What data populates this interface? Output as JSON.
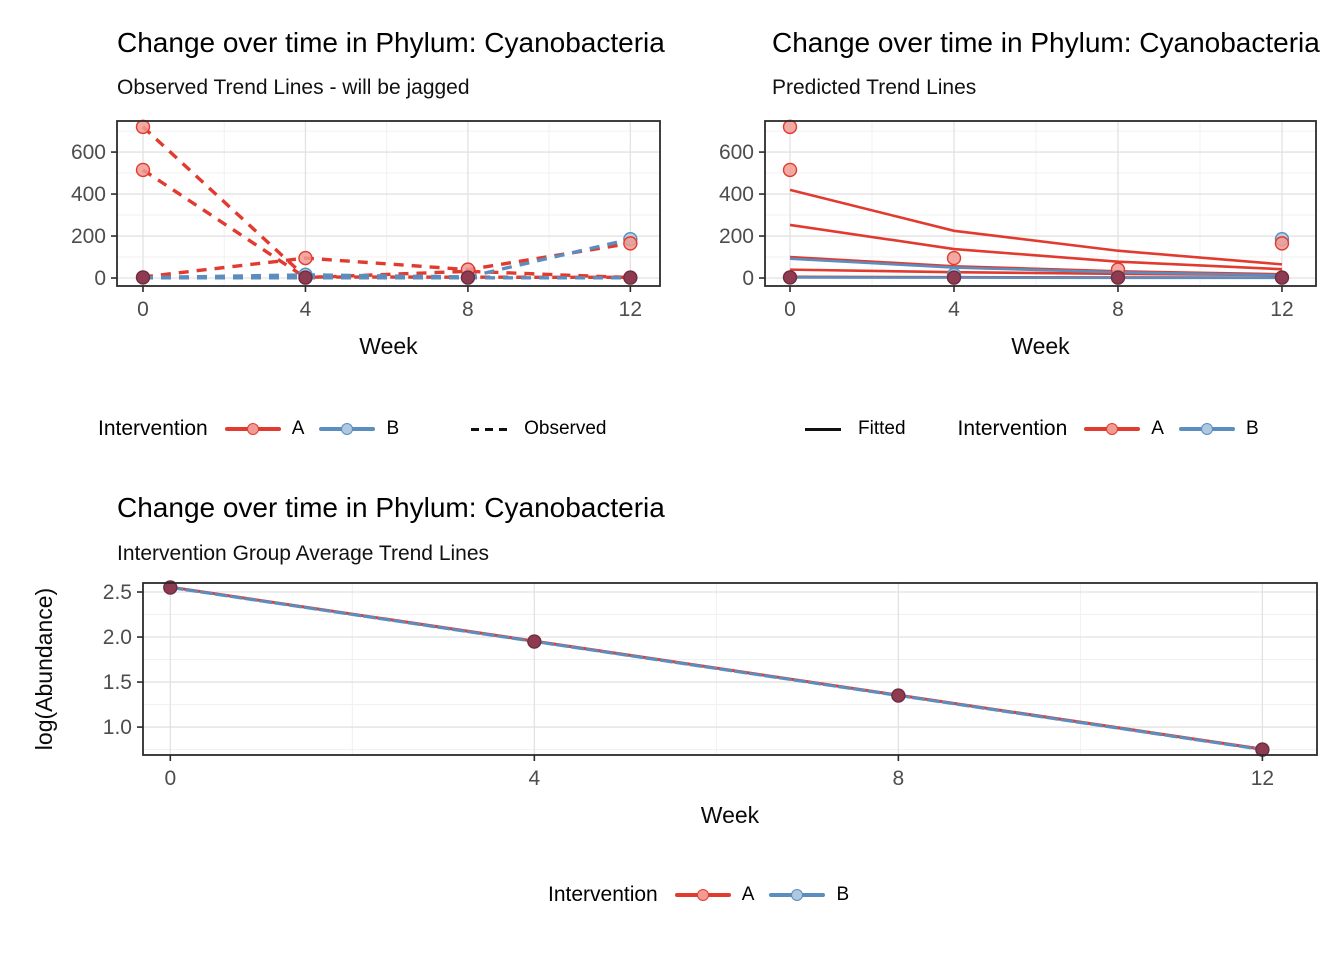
{
  "colors": {
    "red": "#E13B30",
    "red_fill": "#F09B93",
    "blue": "#5B8DBE",
    "blue_fill": "#AEC8E0",
    "overlap_point": "#8E3B51",
    "overlap_stroke": "#6E2C40",
    "grid_major": "#E2E2E2",
    "grid_minor": "#F0F0F0",
    "panel_border": "#2B2B2B",
    "tick_text": "#4D4D4D",
    "axis_title": "#0A0A0A"
  },
  "legends": {
    "observed": {
      "title": "Intervention",
      "a": "A",
      "b": "B",
      "linetype_label": "Observed"
    },
    "fitted": {
      "linetype_label": "Fitted",
      "title": "Intervention",
      "a": "A",
      "b": "B"
    },
    "average": {
      "title": "Intervention",
      "a": "A",
      "b": "B"
    }
  },
  "chart_data": [
    {
      "type": "line",
      "title": "Change over time in Phylum: Cyanobacteria",
      "subtitle": "Observed Trend Lines - will be jagged",
      "xlabel": "Week",
      "ylabel": "",
      "x": [
        0,
        4,
        8,
        12
      ],
      "xticks": [
        {
          "v": 0,
          "label": "0"
        },
        {
          "v": 4,
          "label": "4"
        },
        {
          "v": 8,
          "label": "8"
        },
        {
          "v": 12,
          "label": "12"
        }
      ],
      "yticks": [
        {
          "v": 0,
          "label": "0"
        },
        {
          "v": 200,
          "label": "200"
        },
        {
          "v": 400,
          "label": "400"
        },
        {
          "v": 600,
          "label": "600"
        }
      ],
      "xminor": [
        2,
        6,
        10
      ],
      "yminor": [
        100,
        300,
        500,
        700
      ],
      "xlim": [
        -0.64,
        12.73
      ],
      "ylim": [
        -38,
        748
      ],
      "grid": true,
      "legend_position": "bottom",
      "panel": {
        "l": 117,
        "t": 121,
        "r": 660,
        "b": 286
      },
      "line_width": 3.4,
      "series": [
        {
          "name": "A subject 1",
          "group": "A",
          "style": "dashed",
          "values": [
            720,
            5,
            4,
            3
          ]
        },
        {
          "name": "A subject 2",
          "group": "A",
          "style": "dashed",
          "values": [
            515,
            2,
            32,
            2
          ]
        },
        {
          "name": "A subject 3",
          "group": "A",
          "style": "dashed",
          "values": [
            5,
            95,
            40,
            165
          ]
        },
        {
          "name": "B subject 1",
          "group": "B",
          "style": "dashed",
          "values": [
            2,
            15,
            5,
            185
          ]
        },
        {
          "name": "B subject 2",
          "group": "B",
          "style": "dashed",
          "values": [
            1,
            1,
            1,
            1
          ]
        }
      ],
      "points": [
        {
          "x": 0,
          "y": 720,
          "g": "A"
        },
        {
          "x": 0,
          "y": 515,
          "g": "A"
        },
        {
          "x": 0,
          "y": 3,
          "g": "AB"
        },
        {
          "x": 4,
          "y": 95,
          "g": "A"
        },
        {
          "x": 4,
          "y": 15,
          "g": "B"
        },
        {
          "x": 4,
          "y": 2,
          "g": "AB"
        },
        {
          "x": 8,
          "y": 40,
          "g": "A"
        },
        {
          "x": 8,
          "y": 2,
          "g": "AB"
        },
        {
          "x": 12,
          "y": 185,
          "g": "B"
        },
        {
          "x": 12,
          "y": 165,
          "g": "A"
        },
        {
          "x": 12,
          "y": 2,
          "g": "AB"
        }
      ]
    },
    {
      "type": "line",
      "title": "Change over time in Phylum: Cyanobacteria",
      "subtitle": "Predicted Trend Lines",
      "xlabel": "Week",
      "ylabel": "",
      "x": [
        0,
        4,
        8,
        12
      ],
      "xticks": [
        {
          "v": 0,
          "label": "0"
        },
        {
          "v": 4,
          "label": "4"
        },
        {
          "v": 8,
          "label": "8"
        },
        {
          "v": 12,
          "label": "12"
        }
      ],
      "yticks": [
        {
          "v": 0,
          "label": "0"
        },
        {
          "v": 200,
          "label": "200"
        },
        {
          "v": 400,
          "label": "400"
        },
        {
          "v": 600,
          "label": "600"
        }
      ],
      "xminor": [
        2,
        6,
        10
      ],
      "yminor": [
        100,
        300,
        500,
        700
      ],
      "xlim": [
        -0.61,
        12.83
      ],
      "ylim": [
        -38,
        748
      ],
      "grid": true,
      "legend_position": "bottom",
      "panel": {
        "l": 765,
        "t": 121,
        "r": 1316,
        "b": 286
      },
      "line_width": 2.6,
      "series": [
        {
          "name": "A fit 1",
          "group": "A",
          "style": "solid",
          "values": [
            420,
            225,
            130,
            65
          ]
        },
        {
          "name": "A fit 2",
          "group": "A",
          "style": "solid",
          "values": [
            253,
            138,
            78,
            42
          ]
        },
        {
          "name": "A fit 3",
          "group": "A",
          "style": "solid",
          "values": [
            100,
            56,
            32,
            18
          ]
        },
        {
          "name": "A fit 4",
          "group": "A",
          "style": "solid",
          "values": [
            40,
            28,
            20,
            14
          ]
        },
        {
          "name": "B fit 1",
          "group": "B",
          "style": "solid",
          "values": [
            92,
            50,
            27,
            13
          ]
        },
        {
          "name": "A fit 5",
          "group": "A",
          "style": "solid",
          "values": [
            6,
            4,
            3,
            2
          ]
        },
        {
          "name": "B fit 2",
          "group": "B",
          "style": "solid",
          "values": [
            3,
            2,
            1,
            1
          ]
        }
      ],
      "points": [
        {
          "x": 0,
          "y": 720,
          "g": "A"
        },
        {
          "x": 0,
          "y": 515,
          "g": "A"
        },
        {
          "x": 0,
          "y": 3,
          "g": "AB"
        },
        {
          "x": 4,
          "y": 95,
          "g": "A"
        },
        {
          "x": 4,
          "y": 15,
          "g": "B"
        },
        {
          "x": 4,
          "y": 2,
          "g": "AB"
        },
        {
          "x": 8,
          "y": 40,
          "g": "A"
        },
        {
          "x": 8,
          "y": 2,
          "g": "AB"
        },
        {
          "x": 12,
          "y": 185,
          "g": "B"
        },
        {
          "x": 12,
          "y": 165,
          "g": "A"
        },
        {
          "x": 12,
          "y": 2,
          "g": "AB"
        }
      ]
    },
    {
      "type": "line",
      "title": "Change over time in Phylum: Cyanobacteria",
      "subtitle": "Intervention Group Average Trend Lines",
      "xlabel": "Week",
      "ylabel": "log(Abundance)",
      "x": [
        0,
        4,
        8,
        12
      ],
      "xticks": [
        {
          "v": 0,
          "label": "0"
        },
        {
          "v": 4,
          "label": "4"
        },
        {
          "v": 8,
          "label": "8"
        },
        {
          "v": 12,
          "label": "12"
        }
      ],
      "yticks": [
        {
          "v": 1.0,
          "label": "1.0"
        },
        {
          "v": 1.5,
          "label": "1.5"
        },
        {
          "v": 2.0,
          "label": "2.0"
        },
        {
          "v": 2.5,
          "label": "2.5"
        }
      ],
      "xminor": [
        2,
        6,
        10
      ],
      "yminor": [
        0.75,
        1.25,
        1.75,
        2.25
      ],
      "xlim": [
        -0.3,
        12.6
      ],
      "ylim": [
        0.69,
        2.6
      ],
      "grid": true,
      "legend_position": "bottom",
      "panel": {
        "l": 143,
        "t": 583,
        "r": 1317,
        "b": 755
      },
      "line_width": 3.0,
      "series": [
        {
          "name": "A group average",
          "group": "A",
          "style": "solid",
          "values": [
            2.555,
            1.955,
            1.355,
            0.755
          ]
        },
        {
          "name": "B group average",
          "group": "B",
          "style": "solid-dashcover",
          "values": [
            2.55,
            1.95,
            1.35,
            0.75
          ]
        }
      ],
      "points": [
        {
          "x": 0,
          "y": 2.55,
          "g": "AB"
        },
        {
          "x": 4,
          "y": 1.95,
          "g": "AB"
        },
        {
          "x": 8,
          "y": 1.35,
          "g": "AB"
        },
        {
          "x": 12,
          "y": 0.75,
          "g": "AB"
        }
      ]
    }
  ]
}
